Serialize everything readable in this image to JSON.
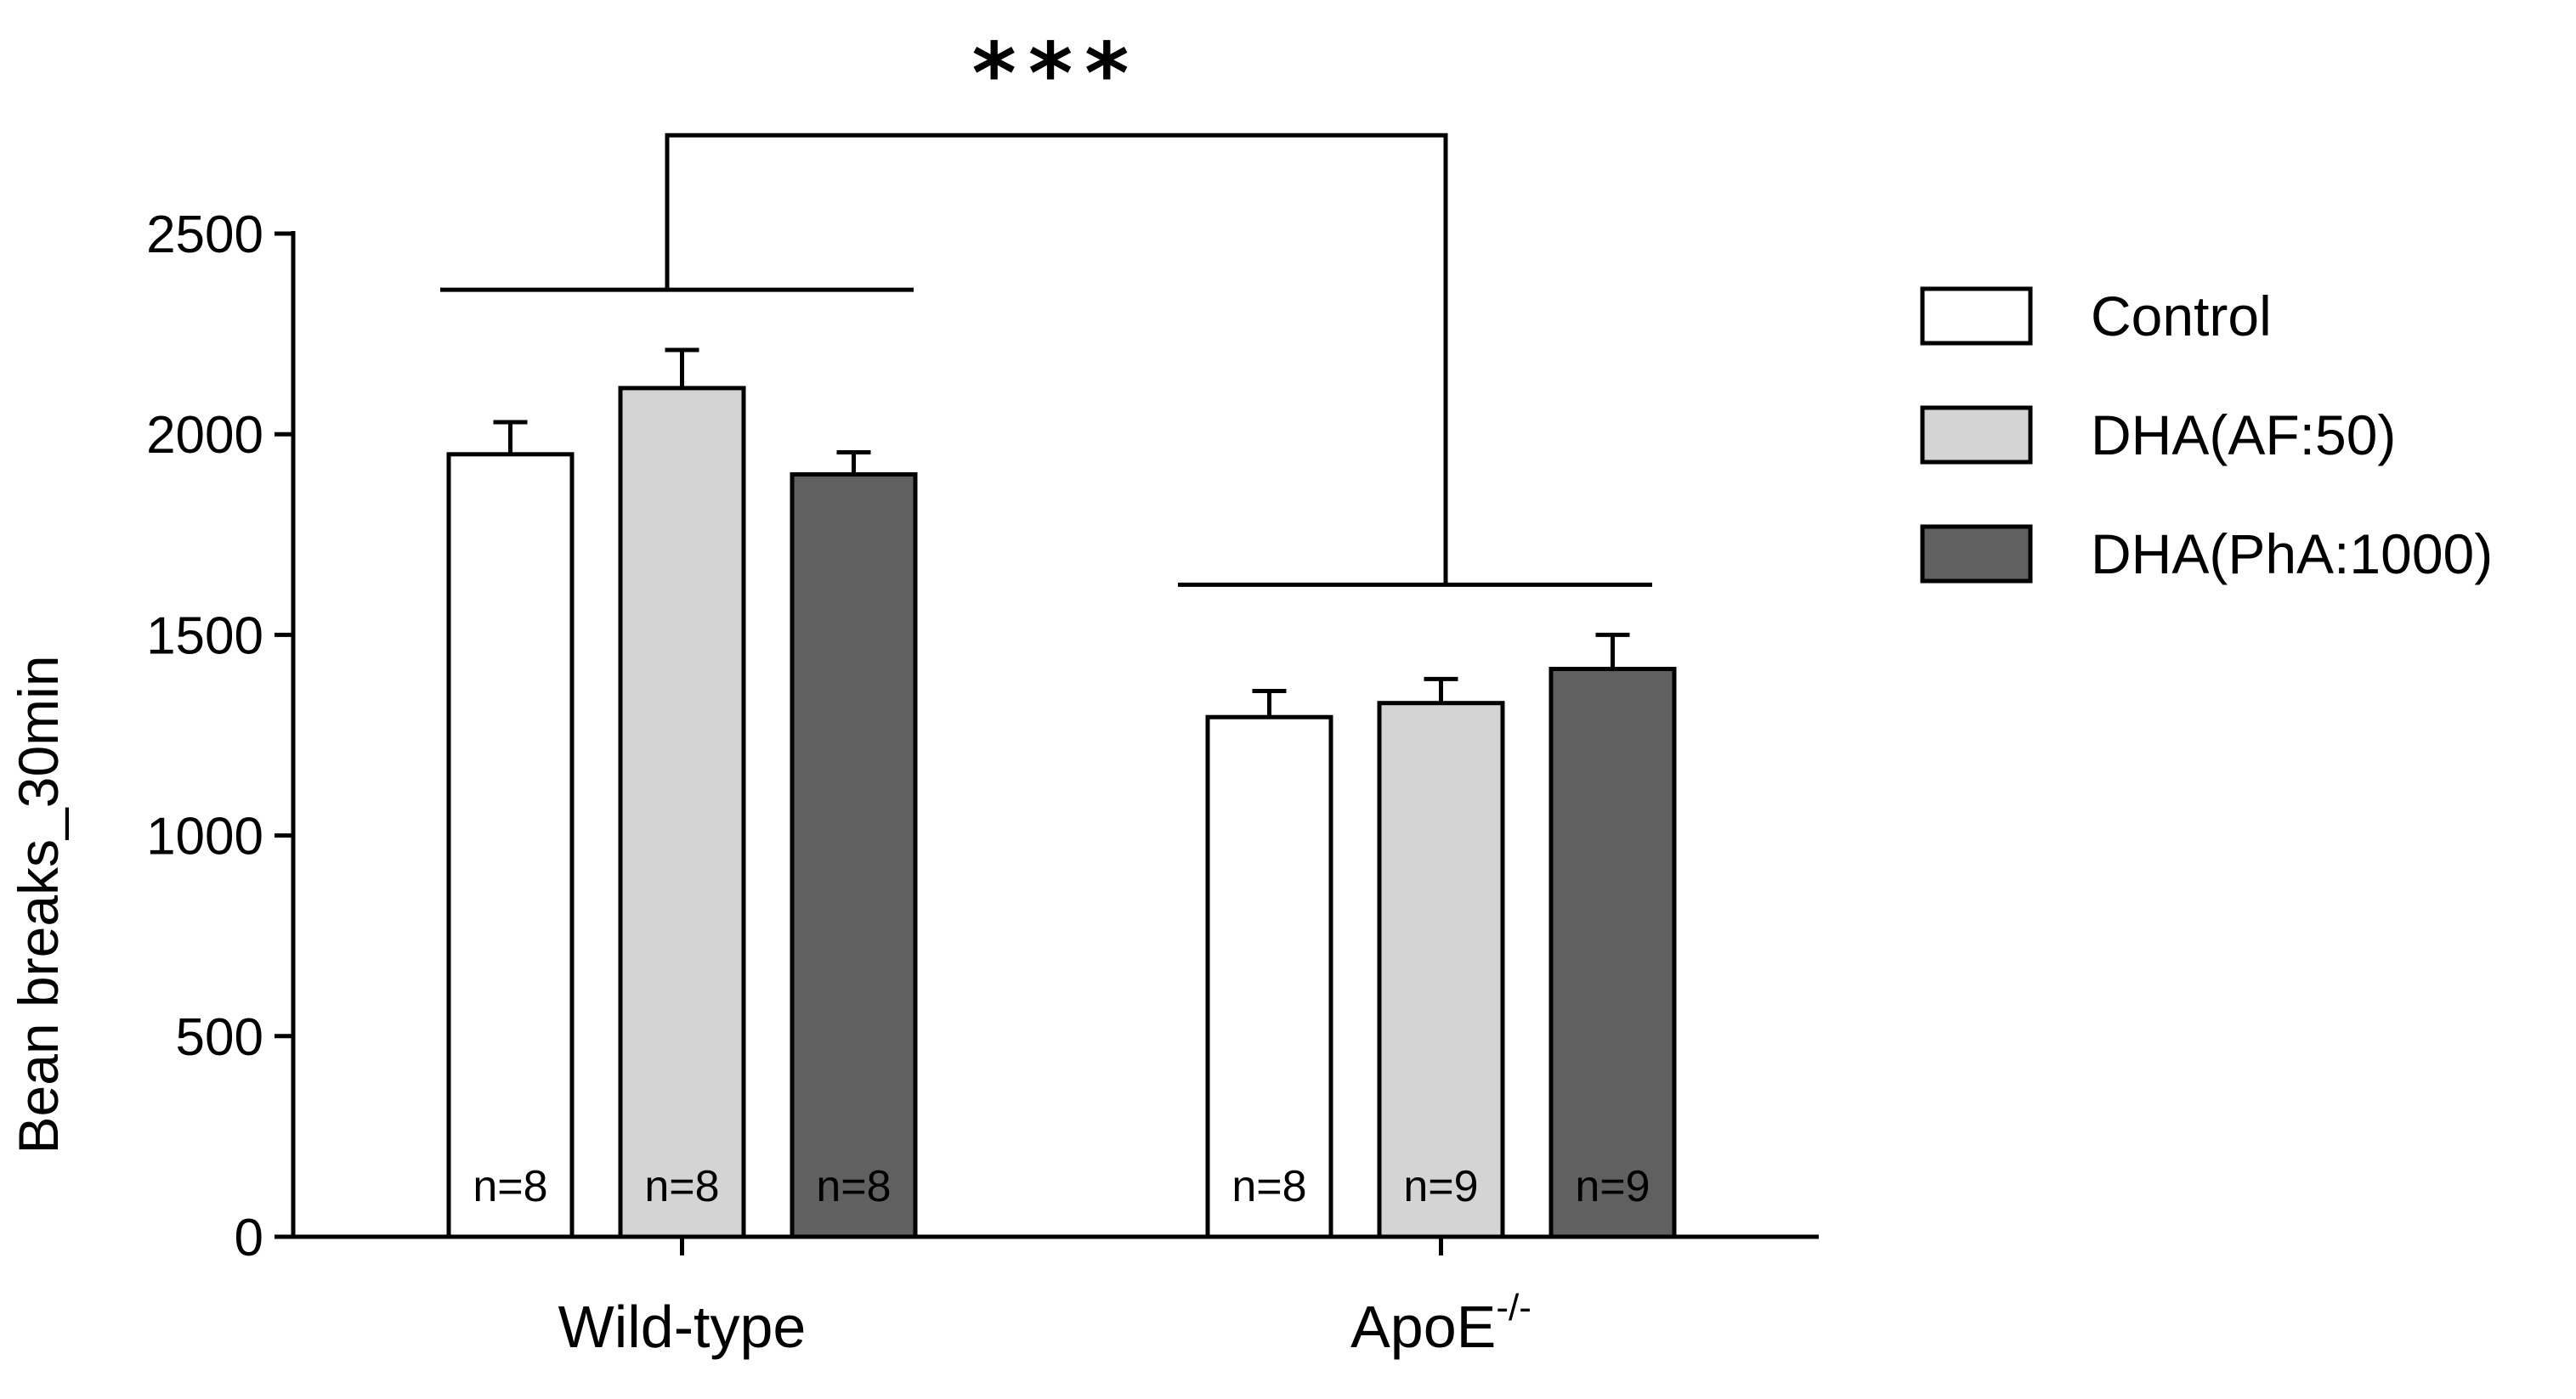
{
  "chart_data": {
    "type": "bar",
    "title": "",
    "xlabel": "",
    "ylabel": "Bean breaks_30min",
    "ylim": [
      0,
      2500
    ],
    "yticks": [
      "0",
      "500",
      "1000",
      "1500",
      "2000",
      "2500"
    ],
    "groups": [
      {
        "name": "Wild-type",
        "sup": ""
      },
      {
        "name": "ApoE",
        "sup": "-/-"
      }
    ],
    "series": [
      {
        "name": "Control",
        "color": "#ffffff",
        "values": [
          1950,
          1295
        ],
        "errors": [
          80,
          65
        ],
        "n": [
          "n=8",
          "n=8"
        ]
      },
      {
        "name": "DHA(AF:50)",
        "color": "#d4d4d4",
        "values": [
          2115,
          1330
        ],
        "errors": [
          95,
          60
        ],
        "n": [
          "n=8",
          "n=9"
        ]
      },
      {
        "name": "DHA(PhA:1000)",
        "color": "#606060",
        "values": [
          1900,
          1415
        ],
        "errors": [
          55,
          85
        ],
        "n": [
          "n=8",
          "n=9"
        ]
      }
    ],
    "significance": {
      "label": "***",
      "left_level": 2360,
      "right_level": 1625,
      "top_level": 2745
    },
    "legend_position": "right"
  }
}
